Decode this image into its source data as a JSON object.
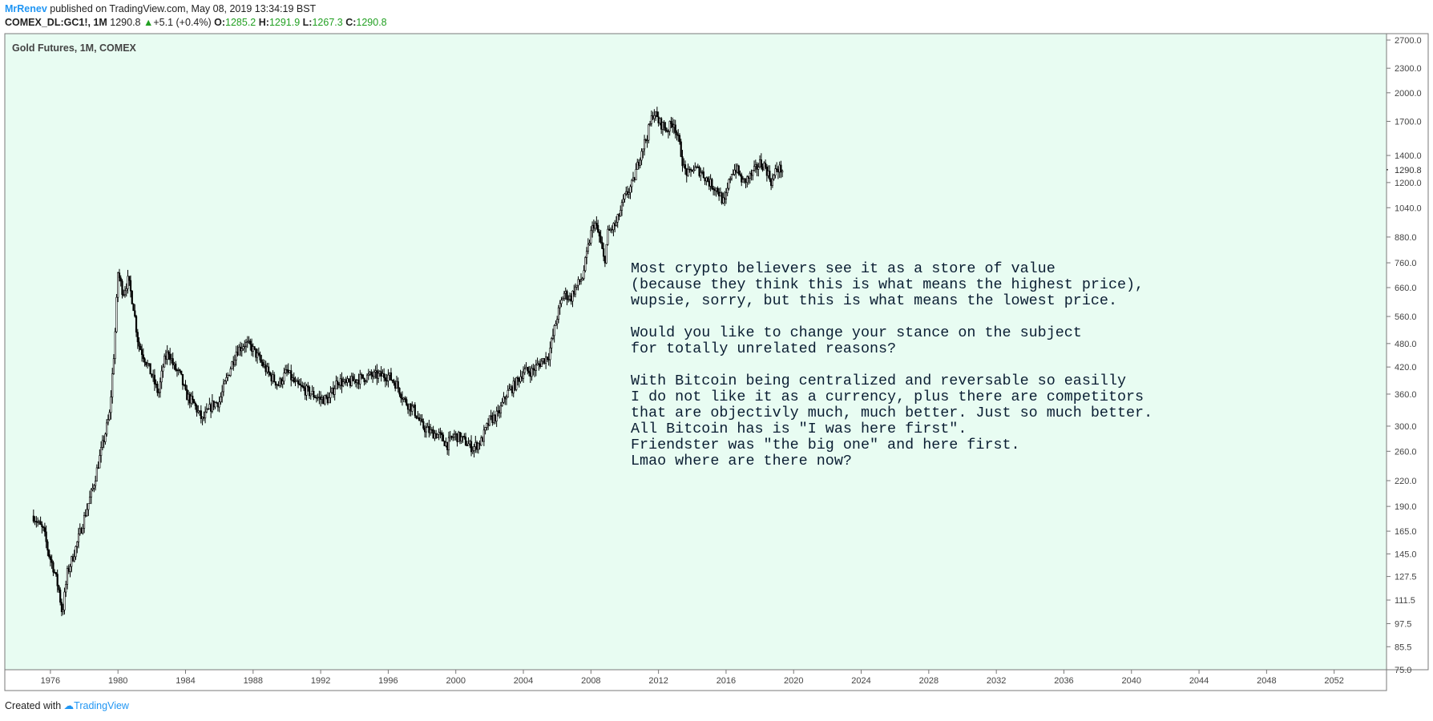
{
  "header": {
    "author": "MrRenev",
    "published": " published on TradingView.com, May 08, 2019 13:34:19 BST",
    "symbol": "COMEX_DL:GC1!, 1M",
    "last": "1290.8",
    "change": "+5.1 (+0.4%)",
    "open_label": "O:",
    "open": "1285.2",
    "high_label": "H:",
    "high": "1291.9",
    "low_label": "L:",
    "low": "1267.3",
    "close_label": "C:",
    "close": "1290.8"
  },
  "footer": {
    "created_with": "Created with",
    "brand": "TradingView"
  },
  "colors": {
    "background": "#e8fcf2",
    "candle": "#000000",
    "accent": "#2196f3",
    "up": "#22a022"
  },
  "chart_data": {
    "type": "candlestick",
    "title": "Gold Futures, 1M, COMEX",
    "current_price_label": "1290.8",
    "y_scale": "log",
    "ylim": [
      75,
      2700
    ],
    "xlim": [
      1973.3,
      2055.1
    ],
    "y_ticks": [
      "2700.0",
      "2300.0",
      "2000.0",
      "1700.0",
      "1400.0",
      "1200.0",
      "1040.0",
      "880.0",
      "760.0",
      "660.0",
      "560.0",
      "480.0",
      "420.0",
      "360.0",
      "300.0",
      "260.0",
      "220.0",
      "190.0",
      "165.0",
      "145.0",
      "127.5",
      "111.5",
      "97.5",
      "85.5",
      "75.0"
    ],
    "x_ticks": [
      "1976",
      "1980",
      "1984",
      "1988",
      "1992",
      "1996",
      "2000",
      "2004",
      "2008",
      "2012",
      "2016",
      "2020",
      "2024",
      "2028",
      "2032",
      "2036",
      "2040",
      "2044",
      "2048",
      "2052"
    ],
    "series": [
      {
        "x": [
          1975.0,
          1975.3,
          1975.6,
          1975.9,
          1976.2,
          1976.5,
          1976.7,
          1977.0,
          1977.5,
          1978.0,
          1978.5,
          1979.0,
          1979.5,
          1979.8,
          1980.0,
          1980.3,
          1980.6,
          1980.9,
          1981.2,
          1981.6,
          1982.0,
          1982.4,
          1982.7,
          1983.0,
          1983.3,
          1983.7,
          1984.0,
          1984.5,
          1985.0,
          1985.2,
          1985.6,
          1986.0,
          1986.5,
          1987.0,
          1987.5,
          1987.9,
          1988.5,
          1989.0,
          1989.5,
          1990.0,
          1990.5,
          1991.0,
          1991.5,
          1992.0,
          1992.5,
          1993.0,
          1993.5,
          1994.0,
          1995.0,
          1996.0,
          1996.5,
          1997.0,
          1997.5,
          1998.0,
          1998.5,
          1999.0,
          1999.5,
          1999.9,
          2000.3,
          2001.0,
          2001.5,
          2002.0,
          2002.5,
          2003.0,
          2003.5,
          2004.0,
          2004.5,
          2005.0,
          2005.5,
          2006.0,
          2006.4,
          2006.8,
          2007.0,
          2007.5,
          2008.0,
          2008.2,
          2008.5,
          2008.8,
          2009.0,
          2009.5,
          2010.0,
          2010.5,
          2011.0,
          2011.3,
          2011.7,
          2012.0,
          2012.5,
          2012.9,
          2013.3,
          2013.5,
          2013.8,
          2014.0,
          2014.5,
          2015.0,
          2015.5,
          2015.9,
          2016.3,
          2016.6,
          2017.0,
          2017.5,
          2018.0,
          2018.3,
          2018.7,
          2019.0,
          2019.35
        ],
        "close": [
          180,
          172,
          165,
          145,
          133,
          118,
          103,
          130,
          150,
          178,
          210,
          260,
          320,
          480,
          720,
          640,
          690,
          600,
          480,
          440,
          400,
          360,
          430,
          460,
          420,
          400,
          360,
          340,
          310,
          320,
          340,
          345,
          400,
          460,
          480,
          470,
          430,
          400,
          380,
          410,
          380,
          370,
          360,
          350,
          350,
          390,
          380,
          390,
          400,
          400,
          380,
          345,
          330,
          300,
          290,
          285,
          270,
          285,
          280,
          265,
          275,
          310,
          320,
          360,
          380,
          410,
          410,
          430,
          450,
          560,
          640,
          620,
          650,
          700,
          900,
          960,
          880,
          760,
          900,
          950,
          1100,
          1200,
          1450,
          1550,
          1800,
          1700,
          1620,
          1700,
          1450,
          1300,
          1250,
          1300,
          1280,
          1200,
          1150,
          1060,
          1270,
          1300,
          1200,
          1250,
          1340,
          1320,
          1200,
          1300,
          1290.8
        ]
      }
    ]
  },
  "annotation": {
    "lines": [
      "Most crypto believers see it as a store of value",
      "(because they think this is what means the highest price),",
      " wupsie, sorry, but this is what means the lowest price.",
      "",
      "Would you like to change your stance on the subject",
      "for totally unrelated reasons?",
      "",
      "With Bitcoin being centralized and reversable so easilly",
      "I do not like it as a currency, plus there are competitors",
      " that are objectivly much, much better. Just so much better.",
      "All Bitcoin has is \"I was here first\".",
      "Friendster was \"the big one\" and here first.",
      "Lmao where are there now?"
    ]
  }
}
